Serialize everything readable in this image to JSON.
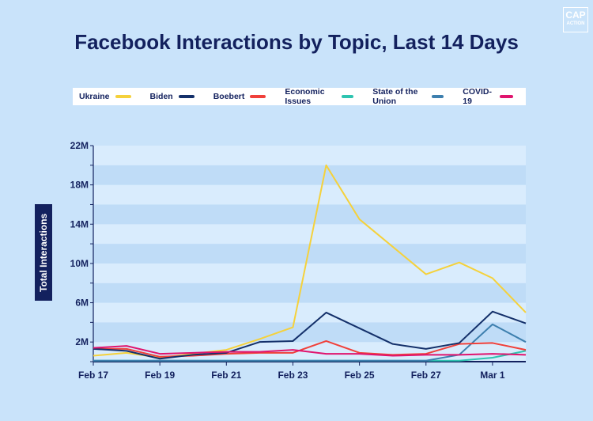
{
  "logo": {
    "line1": "CAP",
    "line2": "ACTION"
  },
  "chart_data": {
    "type": "line",
    "title": "Facebook Interactions by Topic, Last 14 Days",
    "xlabel": "",
    "ylabel": "Total Interactions",
    "ylim": [
      0,
      22000000
    ],
    "legend_position": "top",
    "yticks": [
      {
        "v": 2000000,
        "label": "2M"
      },
      {
        "v": 6000000,
        "label": "6M"
      },
      {
        "v": 10000000,
        "label": "10M"
      },
      {
        "v": 14000000,
        "label": "14M"
      },
      {
        "v": 18000000,
        "label": "18M"
      },
      {
        "v": 22000000,
        "label": "22M"
      }
    ],
    "x": [
      "Feb 17",
      "Feb 18",
      "Feb 19",
      "Feb 20",
      "Feb 21",
      "Feb 22",
      "Feb 23",
      "Feb 24",
      "Feb 25",
      "Feb 26",
      "Feb 27",
      "Feb 28",
      "Mar 1",
      "Mar 2"
    ],
    "xtick_labels": [
      "Feb 17",
      "Feb 19",
      "Feb 21",
      "Feb 23",
      "Feb 25",
      "Feb 27",
      "Mar 1"
    ],
    "series": [
      {
        "name": "Ukraine",
        "color": "#f5d13b",
        "values": [
          0.6,
          0.9,
          0.4,
          0.8,
          1.2,
          2.3,
          3.5,
          20.0,
          14.5,
          11.7,
          8.9,
          10.1,
          8.5,
          5.0
        ]
      },
      {
        "name": "Biden",
        "color": "#14306a",
        "values": [
          1.3,
          1.1,
          0.3,
          0.7,
          0.9,
          2.0,
          2.1,
          5.0,
          3.4,
          1.8,
          1.3,
          1.9,
          5.1,
          3.9
        ]
      },
      {
        "name": "Boebert",
        "color": "#f0403a",
        "values": [
          1.3,
          1.3,
          0.5,
          0.6,
          0.8,
          0.9,
          0.9,
          2.1,
          0.9,
          0.7,
          0.8,
          1.8,
          1.9,
          1.2
        ]
      },
      {
        "name": "Economic Issues",
        "color": "#2ec4b0",
        "values": [
          0.1,
          0.1,
          0.1,
          0.1,
          0.1,
          0.1,
          0.1,
          0.1,
          0.1,
          0.1,
          0.1,
          0.1,
          0.4,
          1.1
        ]
      },
      {
        "name": "State of the Union",
        "color": "#3d7fae",
        "values": [
          0.1,
          0.1,
          0.1,
          0.1,
          0.1,
          0.1,
          0.1,
          0.1,
          0.1,
          0.1,
          0.1,
          0.7,
          3.8,
          2.0
        ]
      },
      {
        "name": "COVID-19",
        "color": "#e0146e",
        "values": [
          1.4,
          1.6,
          0.8,
          0.9,
          1.0,
          1.0,
          1.2,
          0.8,
          0.8,
          0.6,
          0.7,
          0.7,
          0.8,
          0.7
        ]
      }
    ],
    "value_unit": "millions"
  }
}
